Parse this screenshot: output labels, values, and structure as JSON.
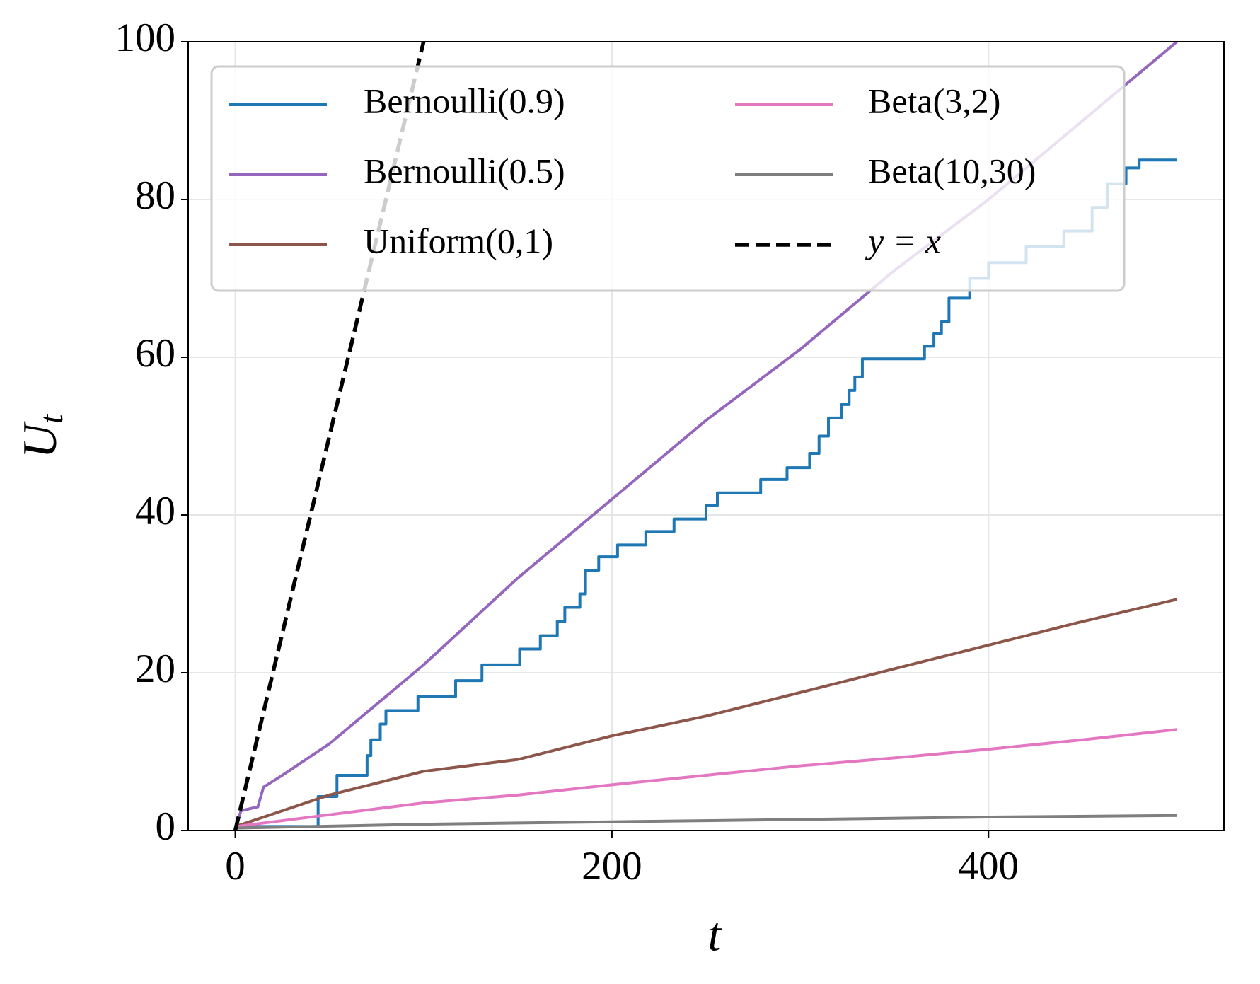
{
  "chart_data": {
    "type": "line",
    "xlabel": "t",
    "ylabel": {
      "main": "U",
      "sub": "t"
    },
    "xlim": [
      -25,
      525
    ],
    "ylim": [
      0,
      100
    ],
    "xticks": [
      0,
      200,
      400
    ],
    "yticks": [
      0,
      20,
      40,
      60,
      80,
      100
    ],
    "grid": true,
    "legend": "upper left",
    "series": [
      {
        "name": "Bernoulli(0.9)",
        "color": "#1f77b4",
        "x": [
          0,
          44,
          44,
          54,
          54,
          70,
          70,
          72,
          72,
          77,
          77,
          80,
          80,
          97,
          97,
          117,
          117,
          131,
          131,
          151,
          151,
          162,
          162,
          171,
          171,
          175,
          175,
          183,
          183,
          186,
          186,
          193,
          193,
          203,
          203,
          218,
          218,
          233,
          233,
          250,
          250,
          256,
          256,
          279,
          279,
          293,
          293,
          305,
          305,
          310,
          310,
          315,
          315,
          322,
          322,
          326,
          326,
          329,
          329,
          333,
          333,
          366,
          366,
          371,
          371,
          375,
          375,
          379,
          379,
          390,
          390,
          400,
          400,
          420,
          420,
          440,
          440,
          455,
          455,
          463,
          463,
          473,
          473,
          480,
          480,
          500
        ],
        "values": [
          0.5,
          0.5,
          4.3,
          4.3,
          7,
          7,
          9.5,
          9.5,
          11.5,
          11.5,
          13.5,
          13.5,
          15.2,
          15.2,
          17,
          17,
          19,
          19,
          21,
          21,
          23,
          23,
          24.7,
          24.7,
          26.5,
          26.5,
          28.3,
          28.3,
          30,
          30,
          33,
          33,
          34.7,
          34.7,
          36.2,
          36.2,
          37.9,
          37.9,
          39.5,
          39.5,
          41.2,
          41.2,
          42.8,
          42.8,
          44.5,
          44.5,
          46,
          46,
          47.8,
          47.8,
          50,
          50,
          52.3,
          52.3,
          54,
          54,
          55.8,
          55.8,
          57.5,
          57.5,
          59.8,
          59.8,
          61.4,
          61.4,
          63,
          63,
          64.5,
          64.5,
          67.5,
          67.5,
          70,
          70,
          72,
          72,
          74,
          74,
          76,
          76,
          79,
          79,
          82,
          82,
          84,
          84,
          85,
          85
        ]
      },
      {
        "name": "Bernoulli(0.5)",
        "color": "#9467bd",
        "x": [
          0,
          3,
          12,
          15,
          25,
          50,
          100,
          150,
          200,
          250,
          300,
          350,
          400,
          450,
          500
        ],
        "values": [
          0,
          2.5,
          3,
          5.5,
          7,
          11,
          21,
          32,
          42,
          52,
          61,
          71,
          80,
          90,
          100
        ]
      },
      {
        "name": "Uniform(0,1)",
        "color": "#8c564b",
        "x": [
          0,
          50,
          100,
          150,
          200,
          250,
          300,
          350,
          400,
          450,
          500
        ],
        "values": [
          0.5,
          4.5,
          7.5,
          9,
          12,
          14.5,
          17.5,
          20.5,
          23.5,
          26.5,
          29.3
        ]
      },
      {
        "name": "Beta(3,2)",
        "color": "#e377c2",
        "x": [
          0,
          50,
          100,
          150,
          200,
          250,
          300,
          350,
          400,
          450,
          500
        ],
        "values": [
          0.5,
          2,
          3.5,
          4.5,
          5.8,
          7,
          8.2,
          9.2,
          10.3,
          11.5,
          12.8
        ]
      },
      {
        "name": "Beta(10,30)",
        "color": "#7f7f7f",
        "x": [
          0,
          100,
          200,
          300,
          400,
          500
        ],
        "values": [
          0.3,
          0.8,
          1.1,
          1.4,
          1.7,
          1.9
        ]
      },
      {
        "name": "y = x",
        "color": "#000000",
        "dash": true,
        "x": [
          0,
          100
        ],
        "values": [
          0,
          100
        ]
      }
    ]
  }
}
